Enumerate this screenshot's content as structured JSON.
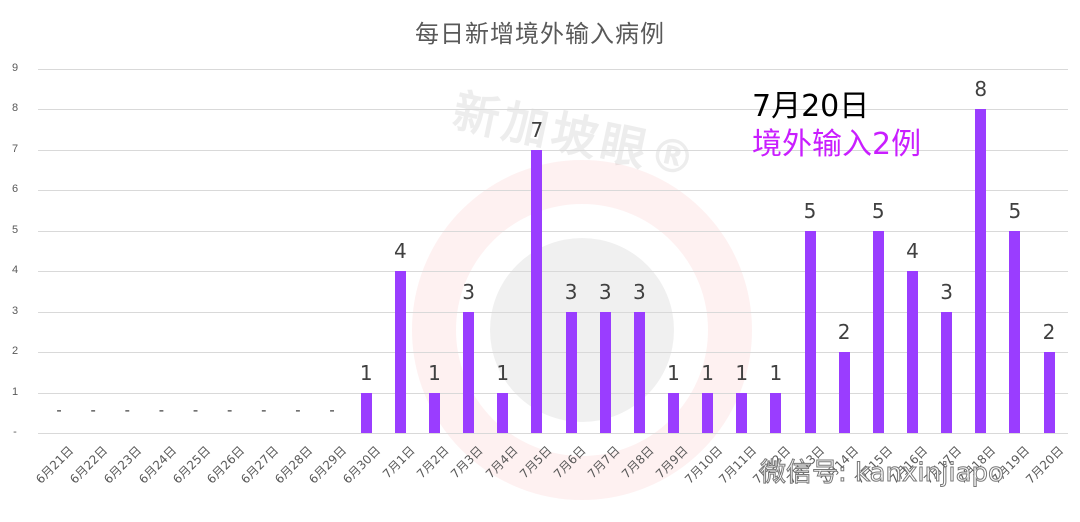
{
  "chart_data": {
    "type": "bar",
    "title": "每日新增境外输入病例",
    "xlabel": "",
    "ylabel": "",
    "ylim": [
      0,
      9
    ],
    "yticks": [
      "-",
      "1",
      "2",
      "3",
      "4",
      "5",
      "6",
      "7",
      "8",
      "9"
    ],
    "grid": true,
    "legend": null,
    "categories": [
      "6月21日",
      "6月22日",
      "6月23日",
      "6月24日",
      "6月25日",
      "6月26日",
      "6月27日",
      "6月28日",
      "6月29日",
      "6月30日",
      "7月1日",
      "7月2日",
      "7月3日",
      "7月4日",
      "7月5日",
      "7月6日",
      "7月7日",
      "7月8日",
      "7月9日",
      "7月10日",
      "7月11日",
      "7月12日",
      "7月13日",
      "7月14日",
      "7月15日",
      "7月16日",
      "7月17日",
      "7月18日",
      "7月19日",
      "7月20日"
    ],
    "values": [
      0,
      0,
      0,
      0,
      0,
      0,
      0,
      0,
      0,
      1,
      4,
      1,
      3,
      1,
      7,
      3,
      3,
      3,
      1,
      1,
      1,
      1,
      5,
      2,
      5,
      4,
      3,
      8,
      5,
      2
    ],
    "data_labels": [
      "-",
      "-",
      "-",
      "-",
      "-",
      "-",
      "-",
      "-",
      "-",
      "1",
      "4",
      "1",
      "3",
      "1",
      "7",
      "3",
      "3",
      "3",
      "1",
      "1",
      "1",
      "1",
      "5",
      "2",
      "5",
      "4",
      "3",
      "8",
      "5",
      "2"
    ],
    "bar_color": "#9a3dff",
    "annotations": [
      {
        "text": "7月20日",
        "color": "#000000"
      },
      {
        "text": "境外输入2例",
        "color": "#c91eff"
      }
    ]
  },
  "watermark": {
    "brand": "新加坡眼®",
    "wechat": "微信号: kanxinjiapo"
  }
}
